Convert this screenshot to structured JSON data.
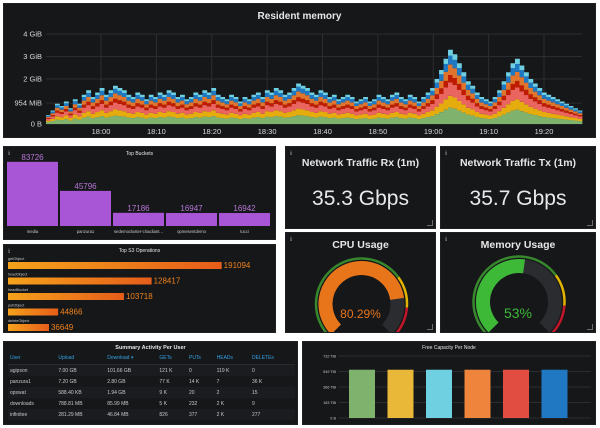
{
  "resident_memory": {
    "title": "Resident memory",
    "chart_data": {
      "type": "area",
      "stacked": true,
      "title": "Resident memory",
      "y_ticks": [
        "0 B",
        "954 MiB",
        "2 GiB",
        "3 GiB",
        "4 GiB"
      ],
      "y_tick_values": [
        0,
        0.93,
        2,
        3,
        4
      ],
      "ylim": [
        0,
        4
      ],
      "x_ticks": [
        "18:00",
        "18:10",
        "18:20",
        "18:30",
        "18:40",
        "18:50",
        "19:00",
        "19:10",
        "19:20"
      ],
      "series_colors": [
        "#7eb26d",
        "#e5ac0e",
        "#ea6460",
        "#bf1b00",
        "#e0752d",
        "#1f78c1",
        "#6ed0e0"
      ],
      "totals_gib": [
        0.4,
        0.6,
        0.9,
        0.8,
        1.0,
        0.7,
        1.1,
        0.9,
        1.3,
        1.5,
        1.2,
        1.4,
        1.6,
        1.3,
        1.5,
        1.7,
        1.6,
        1.5,
        1.3,
        1.2,
        1.4,
        1.3,
        1.1,
        1.3,
        1.2,
        1.4,
        1.3,
        1.5,
        1.4,
        1.2,
        1.3,
        1.1,
        1.2,
        1.4,
        1.3,
        1.5,
        1.4,
        1.6,
        1.3,
        1.2,
        1.1,
        1.3,
        1.2,
        1.0,
        1.2,
        1.1,
        1.3,
        1.4,
        1.2,
        1.5,
        1.4,
        1.6,
        1.5,
        1.3,
        1.4,
        1.6,
        1.8,
        1.7,
        1.6,
        1.4,
        1.3,
        1.5,
        1.4,
        1.2,
        1.3,
        1.1,
        1.2,
        1.3,
        1.2,
        1.0,
        1.1,
        1.2,
        1.0,
        1.1,
        1.3,
        1.2,
        1.1,
        1.3,
        1.4,
        1.2,
        1.1,
        1.3,
        1.2,
        1.0,
        1.2,
        1.4,
        1.6,
        2.0,
        2.4,
        2.9,
        3.3,
        3.1,
        2.7,
        2.3,
        1.9,
        1.7,
        1.4,
        1.2,
        1.1,
        1.0,
        1.2,
        1.5,
        1.9,
        2.3,
        2.7,
        2.9,
        2.6,
        2.3,
        2.0,
        1.8,
        1.6,
        1.4,
        1.3,
        1.2,
        1.1,
        1.0,
        0.9,
        0.8,
        0.7,
        0.6
      ]
    }
  },
  "top_buckets": {
    "title": "Top Buckets",
    "chart_data": {
      "type": "bar",
      "categories": [
        "media",
        "panzura1",
        "sedemocluster-cloudiant...",
        "opmesentdemo",
        "tucci"
      ],
      "values": [
        83726,
        45796,
        17186,
        16947,
        16942
      ],
      "ylim": [
        0,
        90000
      ]
    }
  },
  "top_s3_operations": {
    "title": "Top S3 Operations",
    "chart_data": {
      "type": "bar",
      "orientation": "horizontal",
      "categories": [
        "getObject",
        "headObject",
        "headBucket",
        "putObject",
        "deleteObject"
      ],
      "values": [
        191094,
        128417,
        103718,
        44866,
        36649
      ],
      "xlim": [
        0,
        220000
      ]
    }
  },
  "network_rx": {
    "title": "Network Traffic Rx (1m)",
    "value": "35.3 Gbps"
  },
  "network_tx": {
    "title": "Network Traffic Tx (1m)",
    "value": "35.7 Gbps"
  },
  "cpu_usage": {
    "title": "CPU Usage",
    "value": "80.29%",
    "fraction": 0.8029,
    "color": "#e8751a"
  },
  "memory_usage": {
    "title": "Memory Usage",
    "value": "53%",
    "fraction": 0.53,
    "color": "#3db837"
  },
  "summary_activity": {
    "title": "Summary Activity Per User",
    "columns": [
      "User",
      "Upload",
      "Download ▾",
      "GETs",
      "PUTs",
      "HEADs",
      "DELETEs"
    ],
    "rows": [
      [
        "agipson",
        "7.00 GB",
        "101.66 GB",
        "121 K",
        "0",
        "119 K",
        "0"
      ],
      [
        "panzura1",
        "7.20 GB",
        "2.80 GB",
        "77 K",
        "14 K",
        "7",
        "36 K"
      ],
      [
        "opswat",
        "588.40 KB",
        "1.94 GB",
        "9 K",
        "20",
        "2",
        "15"
      ],
      [
        "downloads",
        "788.81 MB",
        "85.99 MB",
        "5 K",
        "232",
        "2 K",
        "9"
      ],
      [
        "infinitee",
        "281.29 MB",
        "46.84 MB",
        "826",
        "377",
        "2 K",
        "277"
      ],
      [
        "",
        "",
        "",
        "",
        "",
        "",
        ""
      ]
    ]
  },
  "free_capacity": {
    "title": "Free Capacity Per Node",
    "chart_data": {
      "type": "bar",
      "y_ticks": [
        "0 B",
        "183 TiB",
        "366 TiB",
        "549 TiB",
        "732 TiB"
      ],
      "values": [
        570,
        570,
        570,
        570,
        570,
        570
      ],
      "ylim": [
        0,
        732
      ],
      "series_colors": [
        "#7eb26d",
        "#eab839",
        "#6ed0e0",
        "#ef843c",
        "#e24d42",
        "#1f78c1"
      ]
    }
  }
}
